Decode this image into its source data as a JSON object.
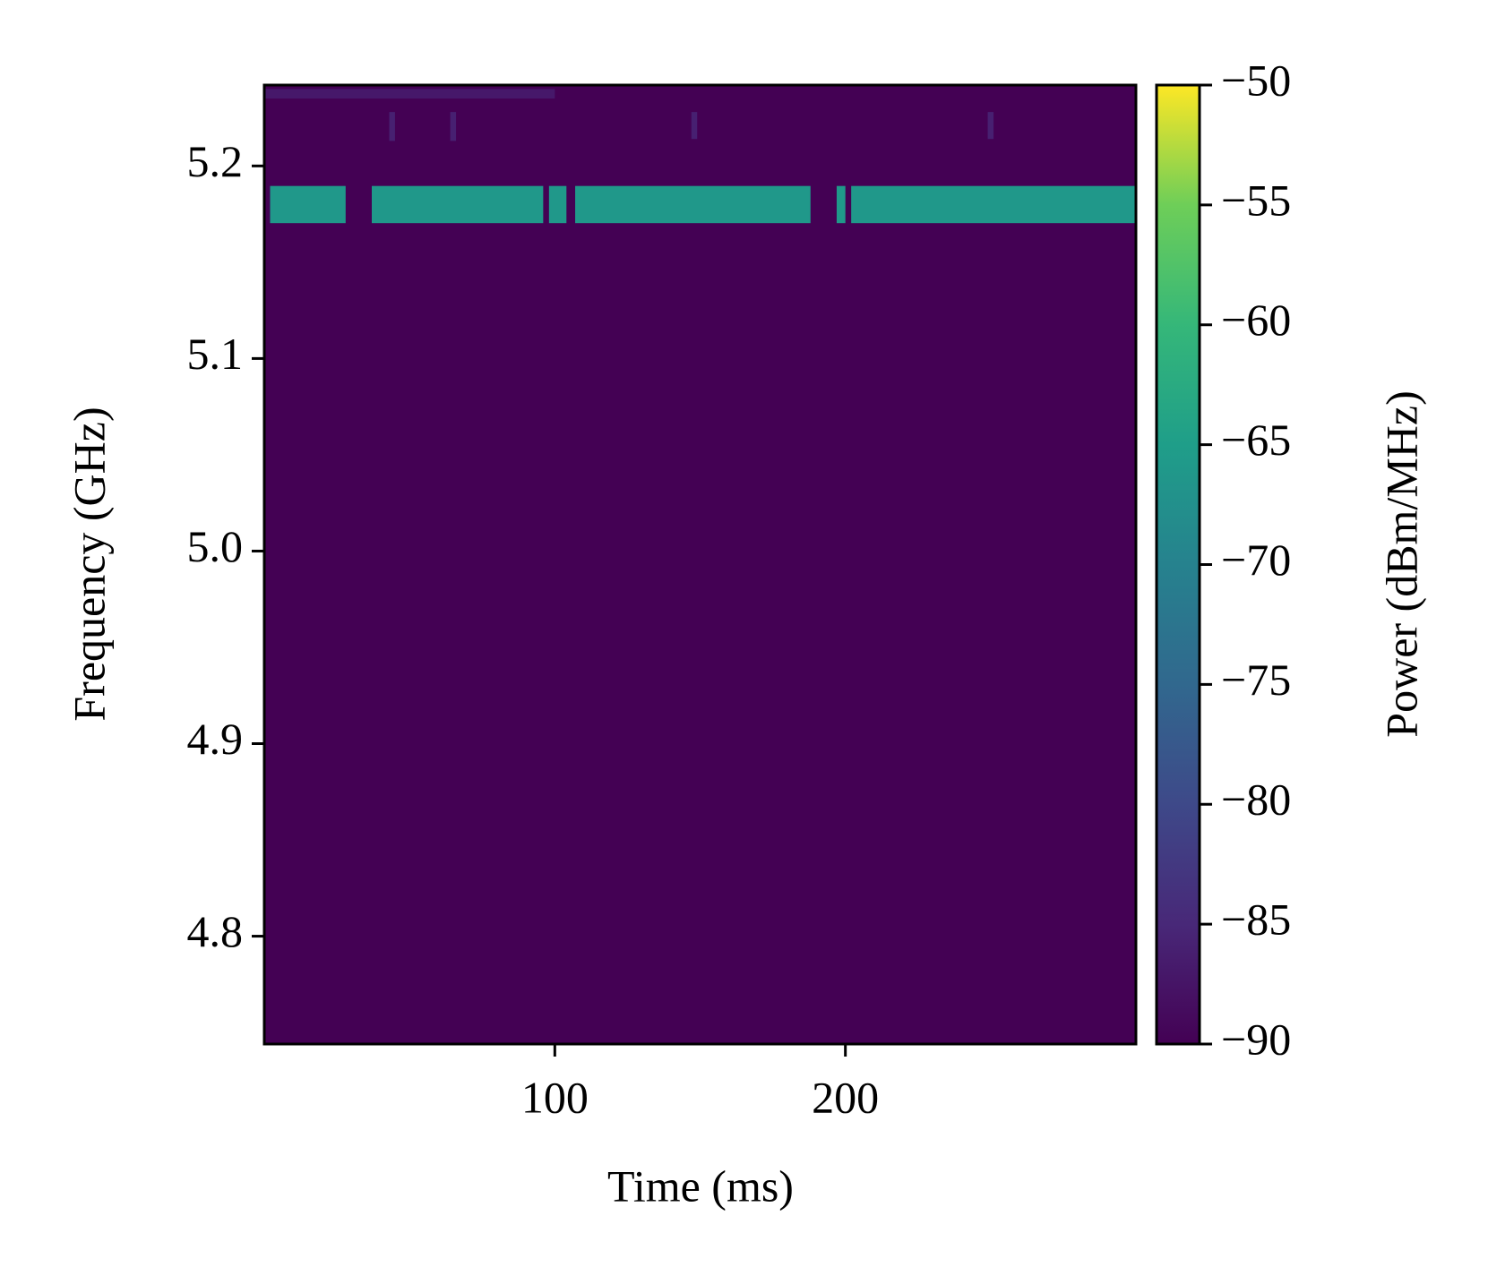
{
  "chart_data": {
    "type": "spectrogram",
    "xlabel": "Time (ms)",
    "ylabel": "Frequency (GHz)",
    "colorbar_label": "Power (dBm/MHz)",
    "colormap": "viridis",
    "xlim": [
      0,
      300
    ],
    "xticks": [
      100,
      200
    ],
    "ylim": [
      4.744,
      5.242
    ],
    "yticks": [
      4.8,
      4.9,
      {
        "value": 5,
        "label": "5.0"
      },
      5.1,
      5.2
    ],
    "clim": [
      -90,
      -50
    ],
    "cticks": [
      {
        "value": -50,
        "label": "−50"
      },
      {
        "value": -55,
        "label": "−55"
      },
      {
        "value": -60,
        "label": "−60"
      },
      {
        "value": -65,
        "label": "−65"
      },
      {
        "value": -70,
        "label": "−70"
      },
      {
        "value": -75,
        "label": "−75"
      },
      {
        "value": -80,
        "label": "−80"
      },
      {
        "value": -85,
        "label": "−85"
      },
      {
        "value": -90,
        "label": "−90"
      }
    ],
    "background": -90,
    "cells": [
      {
        "t": [
          2,
          28
        ],
        "f": [
          5.1703,
          5.1896
        ],
        "value": -66
      },
      {
        "t": [
          37,
          96
        ],
        "f": [
          5.1703,
          5.1896
        ],
        "value": -66
      },
      {
        "t": [
          98,
          104
        ],
        "f": [
          5.1703,
          5.1896
        ],
        "value": -66
      },
      {
        "t": [
          107,
          188
        ],
        "f": [
          5.1703,
          5.1896
        ],
        "value": -66
      },
      {
        "t": [
          197,
          200
        ],
        "f": [
          5.1703,
          5.1896
        ],
        "value": -66
      },
      {
        "t": [
          202,
          300
        ],
        "f": [
          5.1703,
          5.1896
        ],
        "value": -66
      },
      {
        "t": [
          43,
          45
        ],
        "f": [
          5.213,
          5.228
        ],
        "value": -86
      },
      {
        "t": [
          64,
          66
        ],
        "f": [
          5.213,
          5.228
        ],
        "value": -86
      },
      {
        "t": [
          147,
          149
        ],
        "f": [
          5.214,
          5.228
        ],
        "value": -86
      },
      {
        "t": [
          249,
          251
        ],
        "f": [
          5.214,
          5.228
        ],
        "value": -86
      },
      {
        "t": [
          0,
          100
        ],
        "f": [
          5.235,
          5.24
        ],
        "value": -87
      }
    ]
  }
}
